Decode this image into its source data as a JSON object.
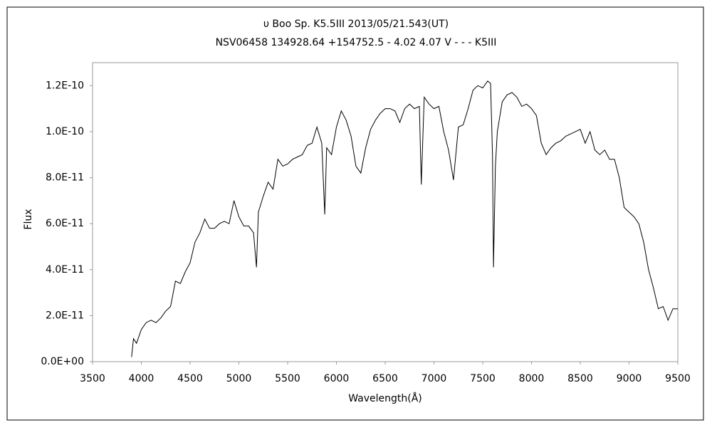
{
  "chart_data": {
    "type": "line",
    "title": "υ Boo   Sp. K5.5III   2013/05/21.543(UT)",
    "subtitle": "NSV06458 134928.64 +154752.5 - 4.02 4.07 V - - - K5III",
    "xlabel": "Wavelength(Å)",
    "ylabel": "Flux",
    "color": "#000000",
    "xlim": [
      3500,
      9500
    ],
    "xticks": [
      3500,
      4000,
      4500,
      5000,
      5500,
      6000,
      6500,
      7000,
      7500,
      8000,
      8500,
      9000,
      9500
    ],
    "ylim": [
      0,
      1.3e-10
    ],
    "yticks": [
      {
        "value": 0,
        "label": "0.0E+00"
      },
      {
        "value": 2e-11,
        "label": "2.0E-11"
      },
      {
        "value": 4e-11,
        "label": "4.0E-11"
      },
      {
        "value": 6e-11,
        "label": "6.0E-11"
      },
      {
        "value": 8e-11,
        "label": "8.0E-11"
      },
      {
        "value": 1e-10,
        "label": "1.0E-10"
      },
      {
        "value": 1.2e-10,
        "label": "1.2E-10"
      }
    ],
    "x": [
      3900,
      3920,
      3950,
      4000,
      4050,
      4100,
      4150,
      4200,
      4250,
      4300,
      4350,
      4400,
      4450,
      4500,
      4550,
      4600,
      4650,
      4700,
      4750,
      4800,
      4850,
      4900,
      4950,
      5000,
      5050,
      5100,
      5150,
      5180,
      5200,
      5250,
      5300,
      5350,
      5400,
      5450,
      5500,
      5550,
      5600,
      5650,
      5700,
      5750,
      5800,
      5850,
      5880,
      5900,
      5950,
      6000,
      6050,
      6100,
      6150,
      6200,
      6250,
      6300,
      6350,
      6400,
      6450,
      6500,
      6550,
      6600,
      6650,
      6700,
      6750,
      6800,
      6850,
      6870,
      6900,
      6950,
      7000,
      7050,
      7100,
      7150,
      7200,
      7250,
      7300,
      7350,
      7400,
      7450,
      7500,
      7550,
      7580,
      7600,
      7610,
      7630,
      7650,
      7700,
      7750,
      7800,
      7850,
      7900,
      7950,
      8000,
      8050,
      8100,
      8150,
      8200,
      8250,
      8300,
      8350,
      8400,
      8450,
      8500,
      8550,
      8600,
      8650,
      8700,
      8750,
      8800,
      8850,
      8900,
      8950,
      9000,
      9050,
      9100,
      9150,
      9200,
      9250,
      9300,
      9350,
      9400,
      9450,
      9500
    ],
    "values": [
      2e-12,
      1e-11,
      8e-12,
      1.4e-11,
      1.7e-11,
      1.8e-11,
      1.7e-11,
      1.9e-11,
      2.2e-11,
      2.4e-11,
      3.5e-11,
      3.4e-11,
      3.9e-11,
      4.3e-11,
      5.2e-11,
      5.6e-11,
      6.2e-11,
      5.8e-11,
      5.8e-11,
      6e-11,
      6.1e-11,
      6e-11,
      7e-11,
      6.3e-11,
      5.9e-11,
      5.9e-11,
      5.6e-11,
      4.1e-11,
      6.5e-11,
      7.2e-11,
      7.8e-11,
      7.5e-11,
      8.8e-11,
      8.5e-11,
      8.6e-11,
      8.8e-11,
      8.9e-11,
      9e-11,
      9.4e-11,
      9.5e-11,
      1.02e-10,
      9.5e-11,
      6.4e-11,
      9.3e-11,
      9e-11,
      1.02e-10,
      1.09e-10,
      1.05e-10,
      9.8e-11,
      8.5e-11,
      8.2e-11,
      9.3e-11,
      1.01e-10,
      1.05e-10,
      1.08e-10,
      1.1e-10,
      1.1e-10,
      1.09e-10,
      1.04e-10,
      1.1e-10,
      1.12e-10,
      1.1e-10,
      1.11e-10,
      7.7e-11,
      1.15e-10,
      1.12e-10,
      1.1e-10,
      1.11e-10,
      1e-10,
      9.2e-11,
      7.9e-11,
      1.02e-10,
      1.03e-10,
      1.1e-10,
      1.18e-10,
      1.2e-10,
      1.19e-10,
      1.22e-10,
      1.21e-10,
      9e-11,
      4.1e-11,
      8.5e-11,
      1e-10,
      1.13e-10,
      1.16e-10,
      1.17e-10,
      1.15e-10,
      1.11e-10,
      1.12e-10,
      1.1e-10,
      1.07e-10,
      9.5e-11,
      9e-11,
      9.3e-11,
      9.5e-11,
      9.6e-11,
      9.8e-11,
      9.9e-11,
      1e-10,
      1.01e-10,
      9.5e-11,
      1e-10,
      9.2e-11,
      9e-11,
      9.2e-11,
      8.8e-11,
      8.8e-11,
      8e-11,
      6.7e-11,
      6.5e-11,
      6.3e-11,
      6e-11,
      5.2e-11,
      4e-11,
      3.2e-11,
      2.3e-11,
      2.4e-11,
      1.8e-11,
      2.3e-11,
      2.3e-11
    ]
  }
}
